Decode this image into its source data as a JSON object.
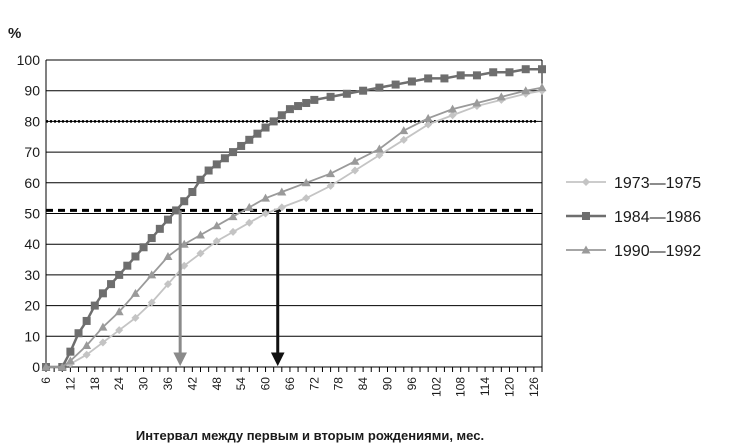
{
  "chart_data": {
    "type": "line",
    "ylabel": "%",
    "xlabel": "Интервал между первым и вторым рождениями, мес.",
    "xlim": [
      6,
      128
    ],
    "ylim": [
      0,
      100
    ],
    "yticks": [
      0,
      10,
      20,
      30,
      40,
      50,
      60,
      70,
      80,
      90,
      100
    ],
    "xticks": [
      6,
      12,
      18,
      24,
      30,
      36,
      42,
      48,
      54,
      60,
      66,
      72,
      78,
      84,
      90,
      96,
      102,
      108,
      114,
      120,
      126
    ],
    "grid": "horizontal",
    "legend_position": "right",
    "reference_lines": [
      {
        "y": 80,
        "style": "dotted"
      },
      {
        "y": 51,
        "style": "dashed"
      }
    ],
    "arrows": [
      {
        "x": 39,
        "from_y": 51,
        "to_y": 0,
        "color": "#8a8a8a"
      },
      {
        "x": 63,
        "from_y": 51,
        "to_y": 0,
        "color": "#111111"
      }
    ],
    "series": [
      {
        "name": "1973—1975",
        "marker": "diamond",
        "color": "#c4c4c4",
        "x": [
          6,
          10,
          12,
          16,
          20,
          24,
          28,
          32,
          36,
          40,
          44,
          48,
          52,
          56,
          60,
          64,
          70,
          76,
          82,
          88,
          94,
          100,
          106,
          112,
          118,
          124,
          128
        ],
        "y": [
          0,
          0,
          1,
          4,
          8,
          12,
          16,
          21,
          27,
          33,
          37,
          41,
          44,
          47,
          50,
          52,
          55,
          59,
          64,
          69,
          74,
          79,
          82,
          85,
          87,
          89,
          90
        ]
      },
      {
        "name": "1984—1986",
        "marker": "square",
        "color": "#6e6e6e",
        "x": [
          6,
          10,
          12,
          14,
          16,
          18,
          20,
          22,
          24,
          26,
          28,
          30,
          32,
          34,
          36,
          38,
          40,
          42,
          44,
          46,
          48,
          50,
          52,
          54,
          56,
          58,
          60,
          62,
          64,
          66,
          68,
          70,
          72,
          76,
          80,
          84,
          88,
          92,
          96,
          100,
          104,
          108,
          112,
          116,
          120,
          124,
          128
        ],
        "y": [
          0,
          0,
          5,
          11,
          15,
          20,
          24,
          27,
          30,
          33,
          36,
          39,
          42,
          45,
          48,
          51,
          54,
          57,
          61,
          64,
          66,
          68,
          70,
          72,
          74,
          76,
          78,
          80,
          82,
          84,
          85,
          86,
          87,
          88,
          89,
          90,
          91,
          92,
          93,
          94,
          94,
          95,
          95,
          96,
          96,
          97,
          97
        ]
      },
      {
        "name": "1990—1992",
        "marker": "triangle",
        "color": "#9a9a9a",
        "x": [
          6,
          10,
          12,
          16,
          20,
          24,
          28,
          32,
          36,
          40,
          44,
          48,
          52,
          56,
          60,
          64,
          70,
          76,
          82,
          88,
          94,
          100,
          106,
          112,
          118,
          124,
          128
        ],
        "y": [
          0,
          0,
          2,
          7,
          13,
          18,
          24,
          30,
          36,
          40,
          43,
          46,
          49,
          52,
          55,
          57,
          60,
          63,
          67,
          71,
          77,
          81,
          84,
          86,
          88,
          90,
          91
        ]
      }
    ]
  }
}
